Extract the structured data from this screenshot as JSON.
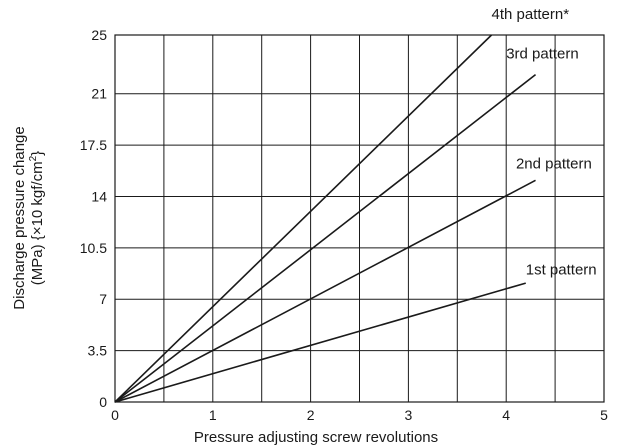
{
  "chart_data": {
    "type": "line",
    "xlabel": "Pressure adjusting screw revolutions",
    "ylabel_line1": "Discharge pressure change",
    "ylabel_line2_prefix": "(MPa) {×10 kgf/cm",
    "ylabel_line2_sup": "2",
    "ylabel_line2_suffix": "}",
    "xlim": [
      0,
      5
    ],
    "ylim": [
      0,
      25
    ],
    "x_ticks": [
      0,
      1,
      2,
      3,
      4,
      5
    ],
    "x_tick_labels": [
      "0",
      "1",
      "2",
      "3",
      "4",
      "5"
    ],
    "y_ticks": [
      0,
      3.5,
      7,
      10.5,
      14,
      17.5,
      21,
      25
    ],
    "y_tick_labels": [
      "0",
      "3.5",
      "7",
      "10.5",
      "14",
      "17.5",
      "21",
      "25"
    ],
    "x_grid": [
      0,
      0.5,
      1,
      1.5,
      2,
      2.5,
      3,
      3.5,
      4,
      4.5,
      5
    ],
    "grid": true,
    "series": [
      {
        "name": "1st pattern",
        "x": [
          0,
          4.2
        ],
        "y": [
          0,
          8.1
        ]
      },
      {
        "name": "2nd pattern",
        "x": [
          0,
          4.3
        ],
        "y": [
          0,
          15.1
        ]
      },
      {
        "name": "3rd pattern",
        "x": [
          0,
          4.3
        ],
        "y": [
          0,
          22.3
        ]
      },
      {
        "name": "4th pattern*",
        "x": [
          0,
          3.85
        ],
        "y": [
          0,
          25
        ]
      }
    ],
    "annotations": [
      {
        "text": "1st pattern",
        "x": 4.2,
        "y": 8.7
      },
      {
        "text": "2nd pattern",
        "x": 4.1,
        "y": 15.9
      },
      {
        "text": "3rd pattern",
        "x": 4.0,
        "y": 23.4
      },
      {
        "text": "4th pattern*",
        "x": 3.85,
        "y": 26.1
      }
    ]
  }
}
